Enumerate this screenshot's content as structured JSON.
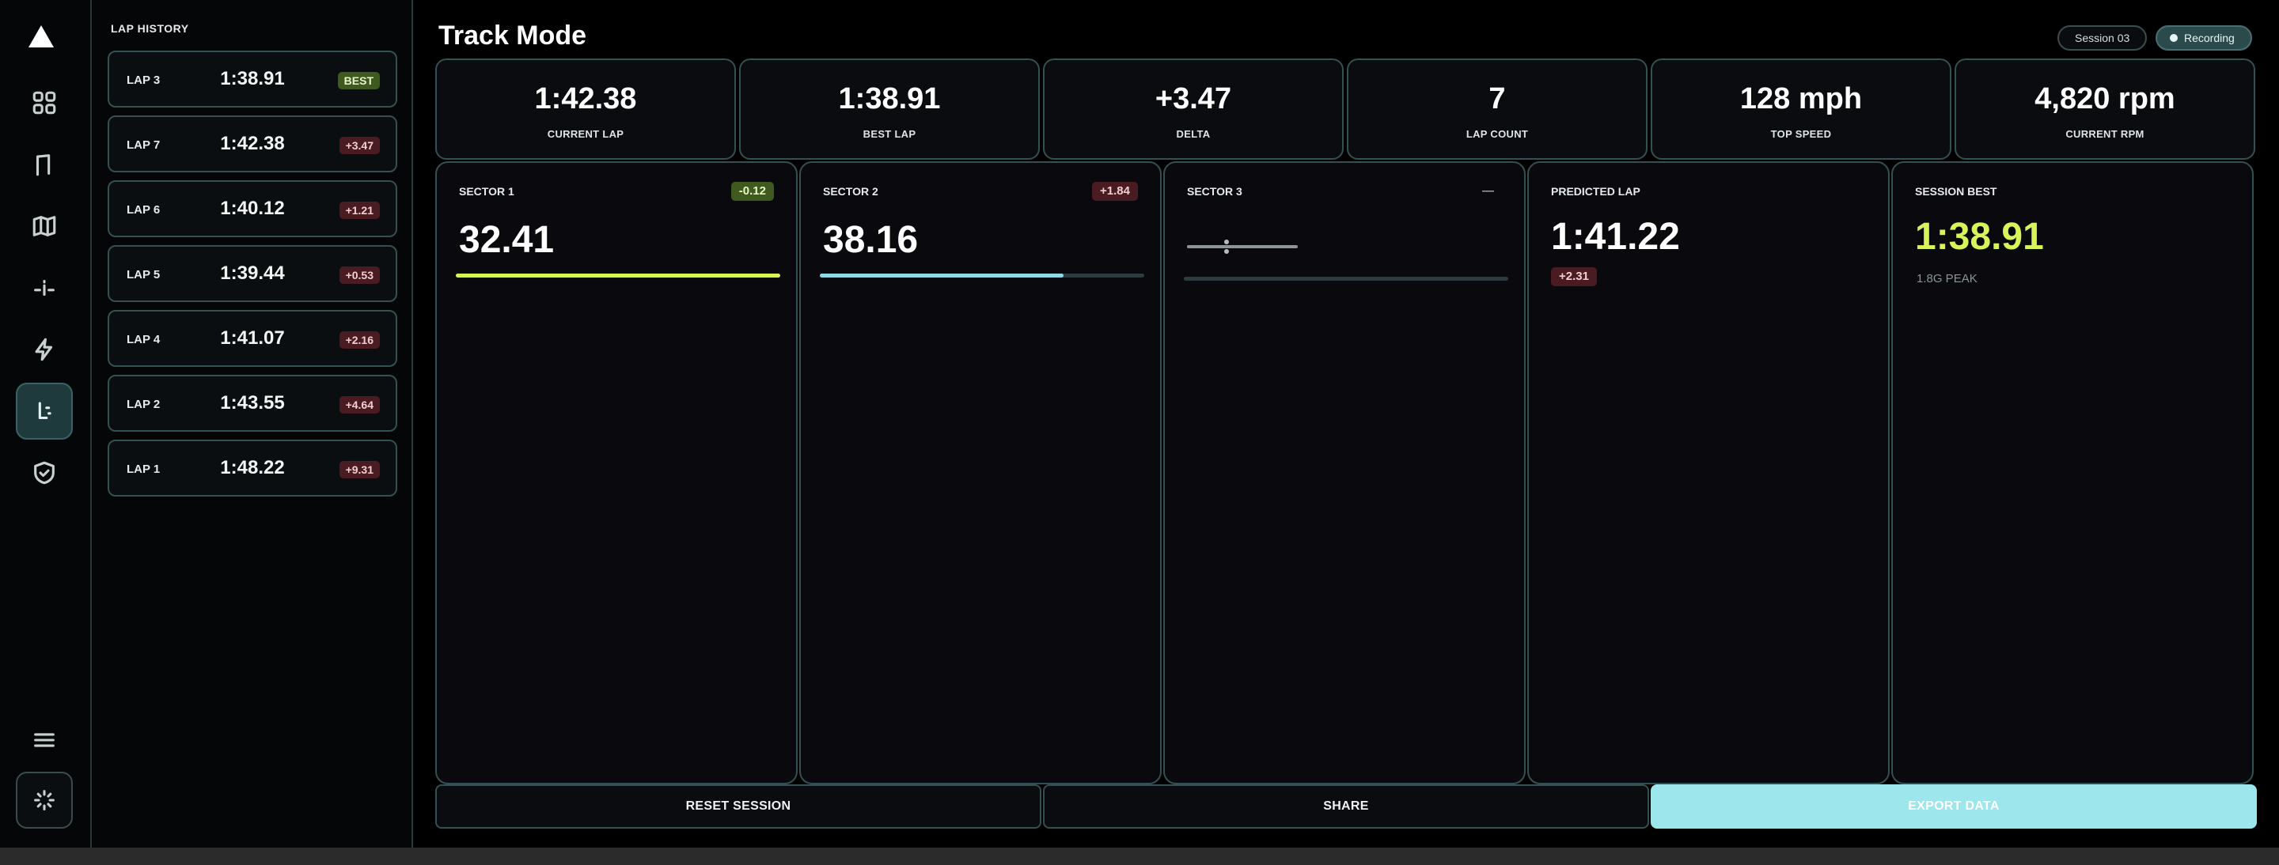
{
  "header": {
    "title": "Track Mode",
    "session_label": "Session  03",
    "recording_label": "Recording"
  },
  "nav": {
    "items": [
      "logo-icon",
      "dashboard-icon",
      "flag-icon",
      "map-icon",
      "sliders-icon",
      "bolt-icon",
      "timer-icon",
      "shield-icon",
      "menu-icon",
      "loader-icon"
    ],
    "active": "timer-icon"
  },
  "lap_history": {
    "title": "LAP HISTORY",
    "laps": [
      {
        "label": "LAP 3",
        "time": "1:38.91",
        "delta": "BEST",
        "best": true
      },
      {
        "label": "LAP 7",
        "time": "1:42.38",
        "delta": "+3.47",
        "best": false
      },
      {
        "label": "LAP 6",
        "time": "1:40.12",
        "delta": "+1.21",
        "best": false
      },
      {
        "label": "LAP 5",
        "time": "1:39.44",
        "delta": "+0.53",
        "best": false
      },
      {
        "label": "LAP 4",
        "time": "1:41.07",
        "delta": "+2.16",
        "best": false
      },
      {
        "label": "LAP 2",
        "time": "1:43.55",
        "delta": "+4.64",
        "best": false
      },
      {
        "label": "LAP 1",
        "time": "1:48.22",
        "delta": "+9.31",
        "best": false
      }
    ]
  },
  "stats": [
    {
      "value": "1:42.38",
      "label": "CURRENT LAP"
    },
    {
      "value": "1:38.91",
      "label": "BEST LAP"
    },
    {
      "value": "+3.47",
      "label": "DELTA"
    },
    {
      "value": "7",
      "label": "LAP COUNT"
    },
    {
      "value": "128 mph",
      "label": "TOP SPEED"
    },
    {
      "value": "4,820 rpm",
      "label": "CURRENT RPM"
    }
  ],
  "sectors": [
    {
      "label": "SECTOR 1",
      "badge": "-0.12",
      "value": "32.41",
      "progress": 1.0,
      "color": "#d7f45a"
    },
    {
      "label": "SECTOR 2",
      "badge": "+1.84",
      "value": "38.16",
      "progress": 0.75,
      "color": "#8fd8e6"
    },
    {
      "label": "SECTOR 3",
      "badge": "—",
      "progress": 0.0,
      "color": "#8fd8e6"
    }
  ],
  "predicted": {
    "label": "PREDICTED LAP",
    "value": "1:41.22",
    "delta": "+2.31"
  },
  "session_best": {
    "label": "SESSION BEST",
    "value": "1:38.91",
    "sub": "1.8G PEAK"
  },
  "actions": {
    "reset": "RESET SESSION",
    "share": "SHARE",
    "export": "EXPORT DATA"
  },
  "colors": {
    "accent": "#9ce6ec",
    "lime": "#d7f45a",
    "border": "#355052",
    "negative_badge": "#4a1c22",
    "positive_badge": "#3f5a1e"
  }
}
